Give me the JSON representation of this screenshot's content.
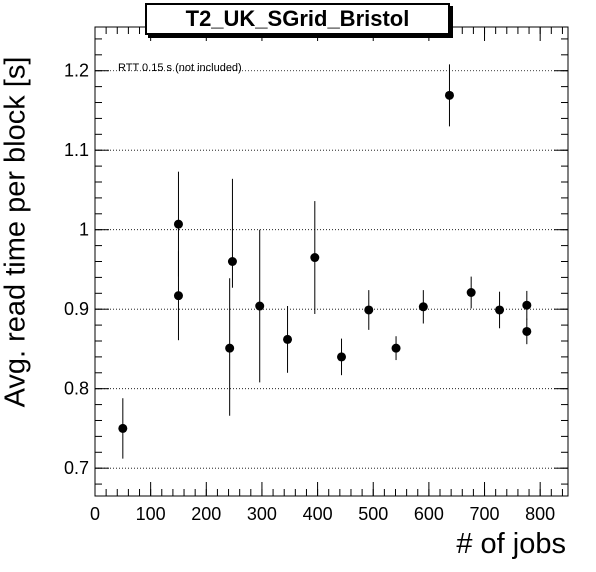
{
  "chart_data": {
    "type": "scatter",
    "title": "T2_UK_SGrid_Bristol",
    "xlabel": "# of jobs",
    "ylabel": "Avg. read time per block [s]",
    "annotation": "RTT 0.15 s (not included)",
    "xlim": [
      0,
      850
    ],
    "ylim": [
      0.665,
      1.255
    ],
    "x_ticks": [
      0,
      100,
      200,
      300,
      400,
      500,
      600,
      700,
      800
    ],
    "x_tick_labels": [
      "0",
      "100",
      "200",
      "300",
      "400",
      "500",
      "600",
      "700",
      "800"
    ],
    "y_ticks": [
      0.7,
      0.8,
      0.9,
      1.0,
      1.1,
      1.2
    ],
    "y_tick_labels": [
      "0.7",
      "0.8",
      "0.9",
      "1",
      "1.1",
      "1.2"
    ],
    "grid": "horizontal-dotted",
    "marker_color": "#000000",
    "points": [
      {
        "x": 50,
        "y": 0.75,
        "err_low": 0.038,
        "err_high": 0.038
      },
      {
        "x": 150,
        "y": 1.007,
        "err_low": 0.066,
        "err_high": 0.066
      },
      {
        "x": 150,
        "y": 0.917,
        "err_low": 0.056,
        "err_high": 0.056
      },
      {
        "x": 242,
        "y": 0.851,
        "err_low": 0.085,
        "err_high": 0.088
      },
      {
        "x": 247,
        "y": 0.96,
        "err_low": 0.033,
        "err_high": 0.104
      },
      {
        "x": 296,
        "y": 0.904,
        "err_low": 0.096,
        "err_high": 0.096
      },
      {
        "x": 346,
        "y": 0.862,
        "err_low": 0.042,
        "err_high": 0.042
      },
      {
        "x": 395,
        "y": 0.965,
        "err_low": 0.071,
        "err_high": 0.071
      },
      {
        "x": 443,
        "y": 0.84,
        "err_low": 0.023,
        "err_high": 0.023
      },
      {
        "x": 492,
        "y": 0.899,
        "err_low": 0.025,
        "err_high": 0.025
      },
      {
        "x": 541,
        "y": 0.851,
        "err_low": 0.015,
        "err_high": 0.015
      },
      {
        "x": 590,
        "y": 0.903,
        "err_low": 0.021,
        "err_high": 0.021
      },
      {
        "x": 637,
        "y": 1.169,
        "err_low": 0.039,
        "err_high": 0.039
      },
      {
        "x": 676,
        "y": 0.921,
        "err_low": 0.02,
        "err_high": 0.02
      },
      {
        "x": 727,
        "y": 0.899,
        "err_low": 0.023,
        "err_high": 0.023
      },
      {
        "x": 776,
        "y": 0.905,
        "err_low": 0.018,
        "err_high": 0.018
      },
      {
        "x": 776,
        "y": 0.872,
        "err_low": 0.016,
        "err_high": 0.016
      }
    ]
  }
}
